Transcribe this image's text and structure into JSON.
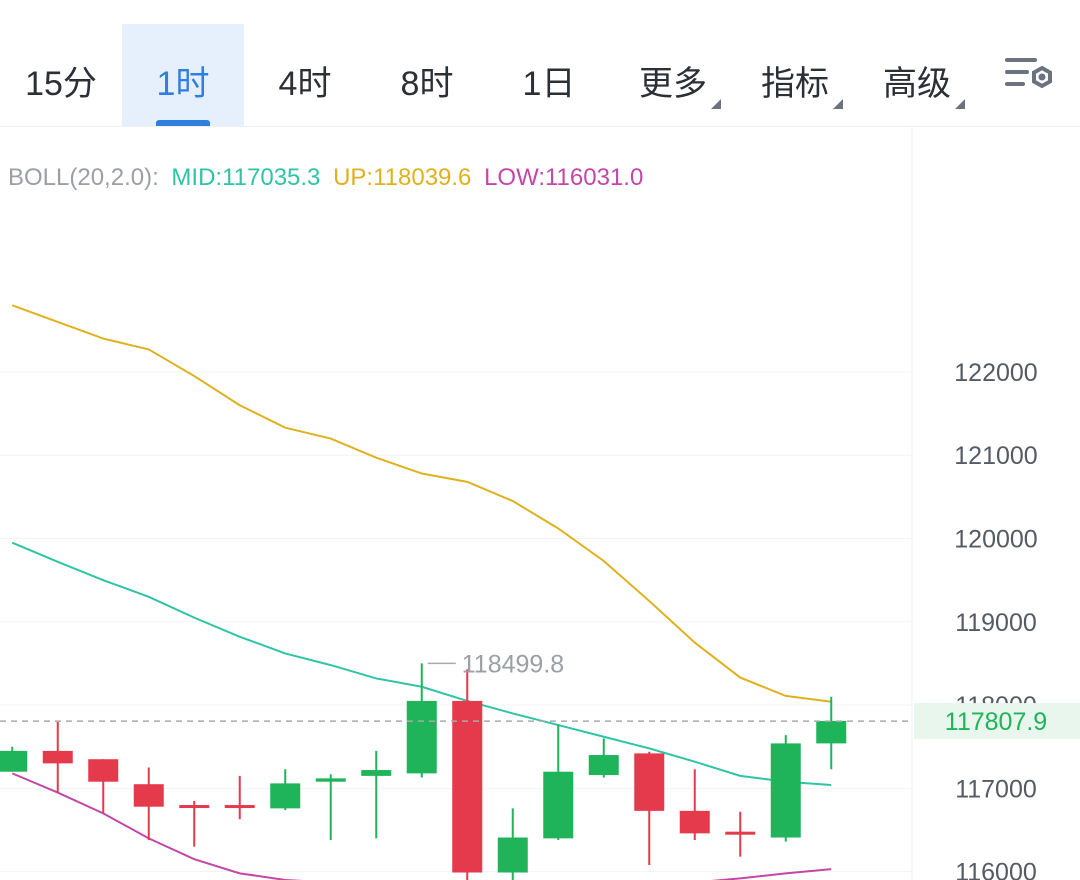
{
  "tabs": [
    {
      "label": "15分",
      "active": false,
      "dropdown": false
    },
    {
      "label": "1时",
      "active": true,
      "dropdown": false
    },
    {
      "label": "4时",
      "active": false,
      "dropdown": false
    },
    {
      "label": "8时",
      "active": false,
      "dropdown": false
    },
    {
      "label": "1日",
      "active": false,
      "dropdown": false
    },
    {
      "label": "更多",
      "active": false,
      "dropdown": true
    },
    {
      "label": "指标",
      "active": false,
      "dropdown": true
    },
    {
      "label": "高级",
      "active": false,
      "dropdown": true
    }
  ],
  "settings_icon": "chart-settings-icon",
  "legend": {
    "name": "BOLL(20,2.0):",
    "mid": "MID:117035.3",
    "up": "UP:118039.6",
    "low": "LOW:116031.0"
  },
  "colors": {
    "accent": "#2f7fe0",
    "up_candle": "#1fb35a",
    "down_candle": "#e5394c",
    "boll_mid": "#2ec4a6",
    "boll_up": "#e0b11e",
    "boll_low": "#c447a8",
    "price_line": "#aaaaaa"
  },
  "chart_data": {
    "type": "candlestick",
    "ylim": [
      115900,
      124940
    ],
    "y_ticks": [
      "122000",
      "121000",
      "120000",
      "119000",
      "118000",
      "117000",
      "116000"
    ],
    "current_price": "117807.9",
    "high_label": "118499.8",
    "candles": [
      {
        "open": 117200,
        "high": 117500,
        "low": 117200,
        "close": 117450
      },
      {
        "open": 117450,
        "high": 117800,
        "low": 116950,
        "close": 117300
      },
      {
        "open": 117350,
        "high": 117350,
        "low": 116700,
        "close": 117080
      },
      {
        "open": 117050,
        "high": 117250,
        "low": 116380,
        "close": 116780
      },
      {
        "open": 116800,
        "high": 116850,
        "low": 116300,
        "close": 116780
      },
      {
        "open": 116800,
        "high": 117150,
        "low": 116630,
        "close": 116780
      },
      {
        "open": 116760,
        "high": 117230,
        "low": 116740,
        "close": 117060
      },
      {
        "open": 117080,
        "high": 117170,
        "low": 116380,
        "close": 117120
      },
      {
        "open": 117150,
        "high": 117450,
        "low": 116400,
        "close": 117220
      },
      {
        "open": 117180,
        "high": 118500,
        "low": 117130,
        "close": 118050
      },
      {
        "open": 118050,
        "high": 118430,
        "low": 115870,
        "close": 115990
      },
      {
        "open": 115990,
        "high": 116760,
        "low": 115870,
        "close": 116410
      },
      {
        "open": 116400,
        "high": 117770,
        "low": 116380,
        "close": 117200
      },
      {
        "open": 117160,
        "high": 117600,
        "low": 117130,
        "close": 117400
      },
      {
        "open": 117420,
        "high": 117440,
        "low": 116080,
        "close": 116730
      },
      {
        "open": 116730,
        "high": 117230,
        "low": 116380,
        "close": 116460
      },
      {
        "open": 116480,
        "high": 116720,
        "low": 116180,
        "close": 116460
      },
      {
        "open": 116410,
        "high": 117640,
        "low": 116360,
        "close": 117540
      },
      {
        "open": 117540,
        "high": 118100,
        "low": 117230,
        "close": 117810
      }
    ],
    "boll_up": [
      122800,
      122600,
      122400,
      122270,
      121950,
      121600,
      121330,
      121200,
      120970,
      120780,
      120680,
      120450,
      120120,
      119730,
      119250,
      118750,
      118330,
      118110,
      118040
    ],
    "boll_mid": [
      119950,
      119720,
      119500,
      119300,
      119050,
      118820,
      118620,
      118480,
      118320,
      118220,
      118050,
      117900,
      117760,
      117620,
      117480,
      117320,
      117150,
      117080,
      117040
    ],
    "boll_low": [
      117180,
      116950,
      116700,
      116400,
      116150,
      115980,
      115900,
      115870,
      115860,
      115860,
      115860,
      115860,
      115860,
      115860,
      115860,
      115870,
      115920,
      115980,
      116030
    ]
  }
}
